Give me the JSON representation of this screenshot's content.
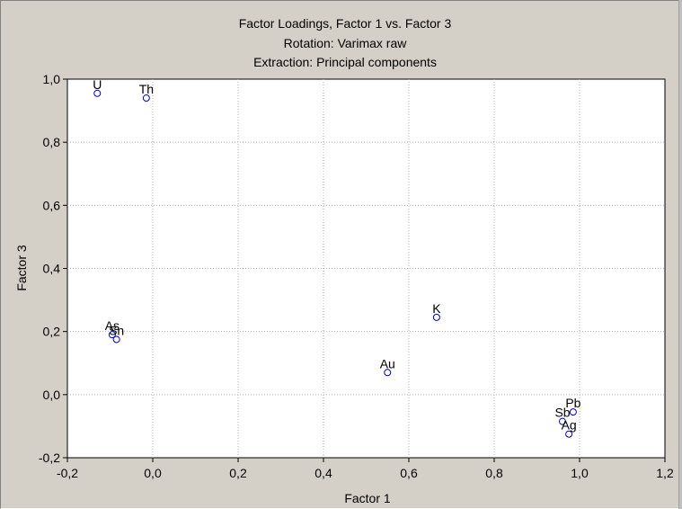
{
  "chart_data": {
    "type": "scatter",
    "title": "Factor Loadings, Factor 1 vs. Factor 3",
    "subtitle_lines": [
      "Rotation: Varimax raw",
      "Extraction: Principal components"
    ],
    "xlabel": "Factor 1",
    "ylabel": "Factor 3",
    "xlim": [
      -0.2,
      1.2
    ],
    "ylim": [
      -0.2,
      1.0
    ],
    "x_ticks": [
      "-0,2",
      "0,0",
      "0,2",
      "0,4",
      "0,6",
      "0,8",
      "1,0",
      "1,2"
    ],
    "y_ticks": [
      "1,0",
      "0,8",
      "0,6",
      "0,4",
      "0,2",
      "0,0",
      "-0,2"
    ],
    "grid": true,
    "marker_color": "#0000cc",
    "points": [
      {
        "label": "U",
        "x": -0.13,
        "y": 0.955
      },
      {
        "label": "Th",
        "x": -0.015,
        "y": 0.94
      },
      {
        "label": "As",
        "x": -0.095,
        "y": 0.19
      },
      {
        "label": "Sn",
        "x": -0.085,
        "y": 0.175
      },
      {
        "label": "K",
        "x": 0.665,
        "y": 0.245
      },
      {
        "label": "Au",
        "x": 0.55,
        "y": 0.07
      },
      {
        "label": "Pb",
        "x": 0.985,
        "y": -0.055
      },
      {
        "label": "Sb",
        "x": 0.96,
        "y": -0.085
      },
      {
        "label": "Ag",
        "x": 0.975,
        "y": -0.125
      }
    ]
  }
}
